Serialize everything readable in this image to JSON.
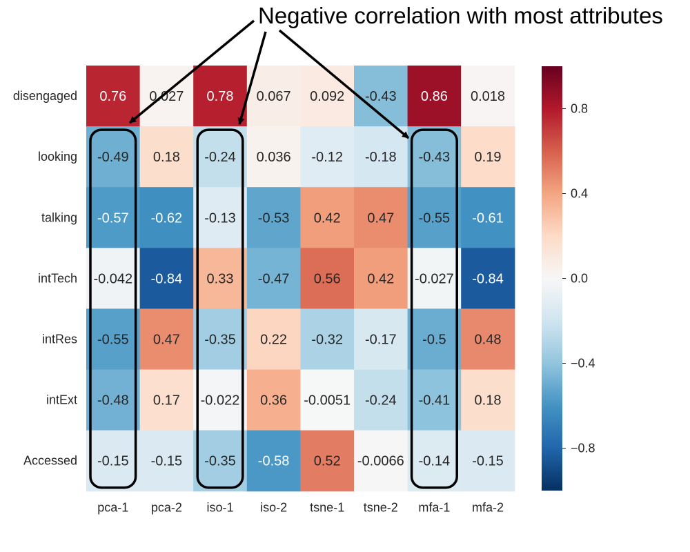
{
  "chart_data": {
    "type": "heatmap",
    "title": "",
    "xlabel": "",
    "ylabel": "",
    "x_categories": [
      "pca-1",
      "pca-2",
      "iso-1",
      "iso-2",
      "tsne-1",
      "tsne-2",
      "mfa-1",
      "mfa-2"
    ],
    "y_categories": [
      "disengaged",
      "looking",
      "talking",
      "intTech",
      "intRes",
      "intExt",
      "Accessed"
    ],
    "values": [
      [
        0.76,
        0.027,
        0.78,
        0.067,
        0.092,
        -0.43,
        0.86,
        0.018
      ],
      [
        -0.49,
        0.18,
        -0.24,
        0.036,
        -0.12,
        -0.18,
        -0.43,
        0.19
      ],
      [
        -0.57,
        -0.62,
        -0.13,
        -0.53,
        0.42,
        0.47,
        -0.55,
        -0.61
      ],
      [
        -0.042,
        -0.84,
        0.33,
        -0.47,
        0.56,
        0.42,
        -0.027,
        -0.84
      ],
      [
        -0.55,
        0.47,
        -0.35,
        0.22,
        -0.32,
        -0.17,
        -0.5,
        0.48
      ],
      [
        -0.48,
        0.17,
        -0.022,
        0.36,
        -0.0051,
        -0.24,
        -0.41,
        0.18
      ],
      [
        -0.15,
        -0.15,
        -0.35,
        -0.58,
        0.52,
        -0.0066,
        -0.14,
        -0.15
      ]
    ],
    "value_labels": [
      [
        "0.76",
        "0.027",
        "0.78",
        "0.067",
        "0.092",
        "-0.43",
        "0.86",
        "0.018"
      ],
      [
        "-0.49",
        "0.18",
        "-0.24",
        "0.036",
        "-0.12",
        "-0.18",
        "-0.43",
        "0.19"
      ],
      [
        "-0.57",
        "-0.62",
        "-0.13",
        "-0.53",
        "0.42",
        "0.47",
        "-0.55",
        "-0.61"
      ],
      [
        "-0.042",
        "-0.84",
        "0.33",
        "-0.47",
        "0.56",
        "0.42",
        "-0.027",
        "-0.84"
      ],
      [
        "-0.55",
        "0.47",
        "-0.35",
        "0.22",
        "-0.32",
        "-0.17",
        "-0.5",
        "0.48"
      ],
      [
        "-0.48",
        "0.17",
        "-0.022",
        "0.36",
        "-0.0051",
        "-0.24",
        "-0.41",
        "0.18"
      ],
      [
        "-0.15",
        "-0.15",
        "-0.35",
        "-0.58",
        "0.52",
        "-0.0066",
        "-0.14",
        "-0.15"
      ]
    ],
    "colormap": "RdBu_r",
    "vmin": -1,
    "vmax": 1,
    "colorbar": {
      "ticks": [
        0.8,
        0.4,
        0.0,
        -0.4,
        -0.8
      ],
      "tick_labels": [
        "0.8",
        "0.4",
        "0.0",
        "−0.4",
        "−0.8"
      ]
    },
    "annotation": {
      "text": "Negative correlation with most attributes",
      "highlighted_columns": [
        "pca-1",
        "iso-1",
        "mfa-1"
      ],
      "highlight_rows": [
        "looking",
        "Accessed"
      ]
    }
  }
}
